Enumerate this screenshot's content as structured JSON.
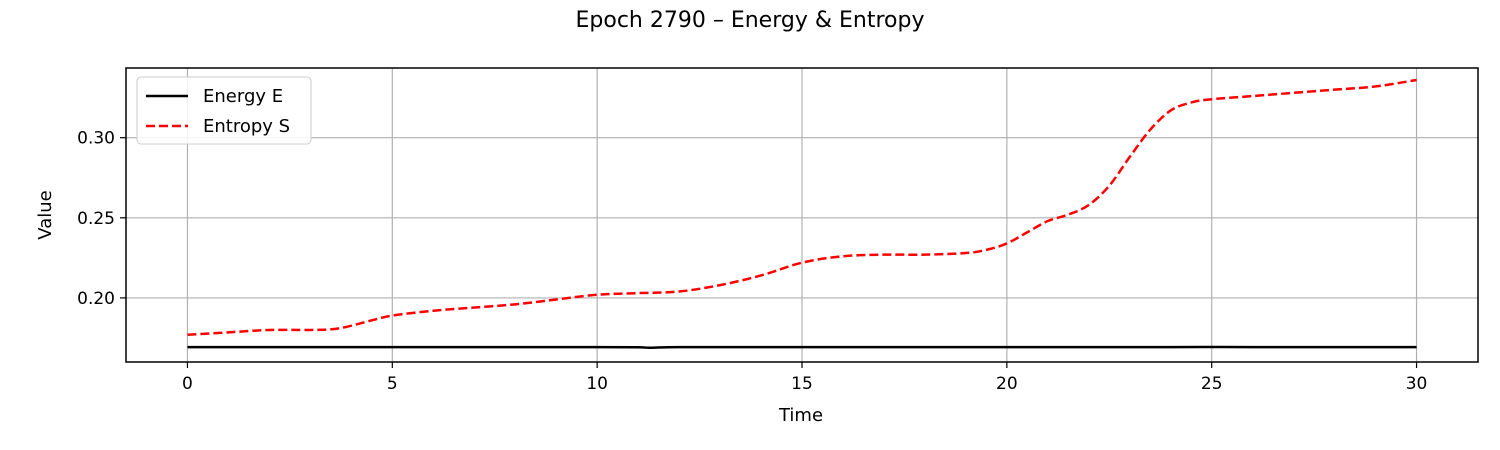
{
  "chart_data": {
    "type": "line",
    "title": "Epoch 2790 – Energy & Entropy",
    "xlabel": "Time",
    "ylabel": "Value",
    "xlim": [
      -1.5,
      31.5
    ],
    "ylim": [
      0.16,
      0.3435
    ],
    "xticks": [
      0,
      5,
      10,
      15,
      20,
      25,
      30
    ],
    "xtick_labels": [
      "0",
      "5",
      "10",
      "15",
      "20",
      "25",
      "30"
    ],
    "yticks": [
      0.2,
      0.25,
      0.3
    ],
    "ytick_labels": [
      "0.20",
      "0.25",
      "0.30"
    ],
    "grid": true,
    "legend_position": "top-left",
    "series": [
      {
        "name": "Energy E",
        "color": "#000000",
        "style": "solid",
        "x": [
          0,
          2,
          4,
          6,
          8,
          10,
          11,
          11.3,
          12,
          14,
          16,
          18,
          20,
          22,
          24,
          25,
          26,
          28,
          30
        ],
        "y": [
          0.1693,
          0.1693,
          0.1693,
          0.1693,
          0.1693,
          0.1693,
          0.1692,
          0.1689,
          0.1693,
          0.1693,
          0.1693,
          0.1693,
          0.1693,
          0.1693,
          0.1693,
          0.1694,
          0.1693,
          0.1693,
          0.1693
        ]
      },
      {
        "name": "Entropy S",
        "color": "#ff0000",
        "style": "dashed",
        "x": [
          0,
          1,
          2,
          3,
          3.7,
          4.5,
          5,
          6,
          7,
          8,
          9,
          10,
          11,
          12,
          13,
          14,
          15,
          16,
          17,
          18,
          19,
          19.5,
          20,
          20.5,
          21,
          21.5,
          22,
          22.5,
          23,
          23.5,
          24,
          24.5,
          25,
          26,
          27,
          28,
          29,
          30
        ],
        "y": [
          0.177,
          0.1785,
          0.18,
          0.18,
          0.181,
          0.186,
          0.189,
          0.192,
          0.194,
          0.196,
          0.199,
          0.202,
          0.203,
          0.204,
          0.208,
          0.214,
          0.222,
          0.226,
          0.227,
          0.227,
          0.228,
          0.23,
          0.234,
          0.241,
          0.248,
          0.252,
          0.258,
          0.27,
          0.288,
          0.305,
          0.317,
          0.322,
          0.324,
          0.326,
          0.328,
          0.33,
          0.332,
          0.336
        ]
      }
    ]
  }
}
